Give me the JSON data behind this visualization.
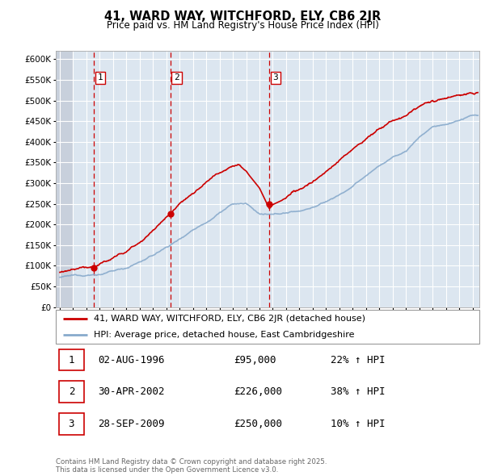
{
  "title1": "41, WARD WAY, WITCHFORD, ELY, CB6 2JR",
  "title2": "Price paid vs. HM Land Registry's House Price Index (HPI)",
  "legend_line1": "41, WARD WAY, WITCHFORD, ELY, CB6 2JR (detached house)",
  "legend_line2": "HPI: Average price, detached house, East Cambridgeshire",
  "transactions": [
    {
      "num": 1,
      "date_str": "02-AUG-1996",
      "price": 95000,
      "hpi_pct": "22% ↑ HPI",
      "x": 1996.58
    },
    {
      "num": 2,
      "date_str": "30-APR-2002",
      "price": 226000,
      "hpi_pct": "38% ↑ HPI",
      "x": 2002.33
    },
    {
      "num": 3,
      "date_str": "28-SEP-2009",
      "price": 250000,
      "hpi_pct": "10% ↑ HPI",
      "x": 2009.74
    }
  ],
  "footer": "Contains HM Land Registry data © Crown copyright and database right 2025.\nThis data is licensed under the Open Government Licence v3.0.",
  "ylim": [
    0,
    620000
  ],
  "yticks": [
    0,
    50000,
    100000,
    150000,
    200000,
    250000,
    300000,
    350000,
    400000,
    450000,
    500000,
    550000,
    600000
  ],
  "xlim": [
    1993.7,
    2025.5
  ],
  "red_color": "#cc0000",
  "blue_color": "#88aacc",
  "bg_color": "#dce6f0",
  "hatch_bg": "#c8d0dc",
  "grid_color": "#ffffff",
  "label_box_color": "#cc0000"
}
